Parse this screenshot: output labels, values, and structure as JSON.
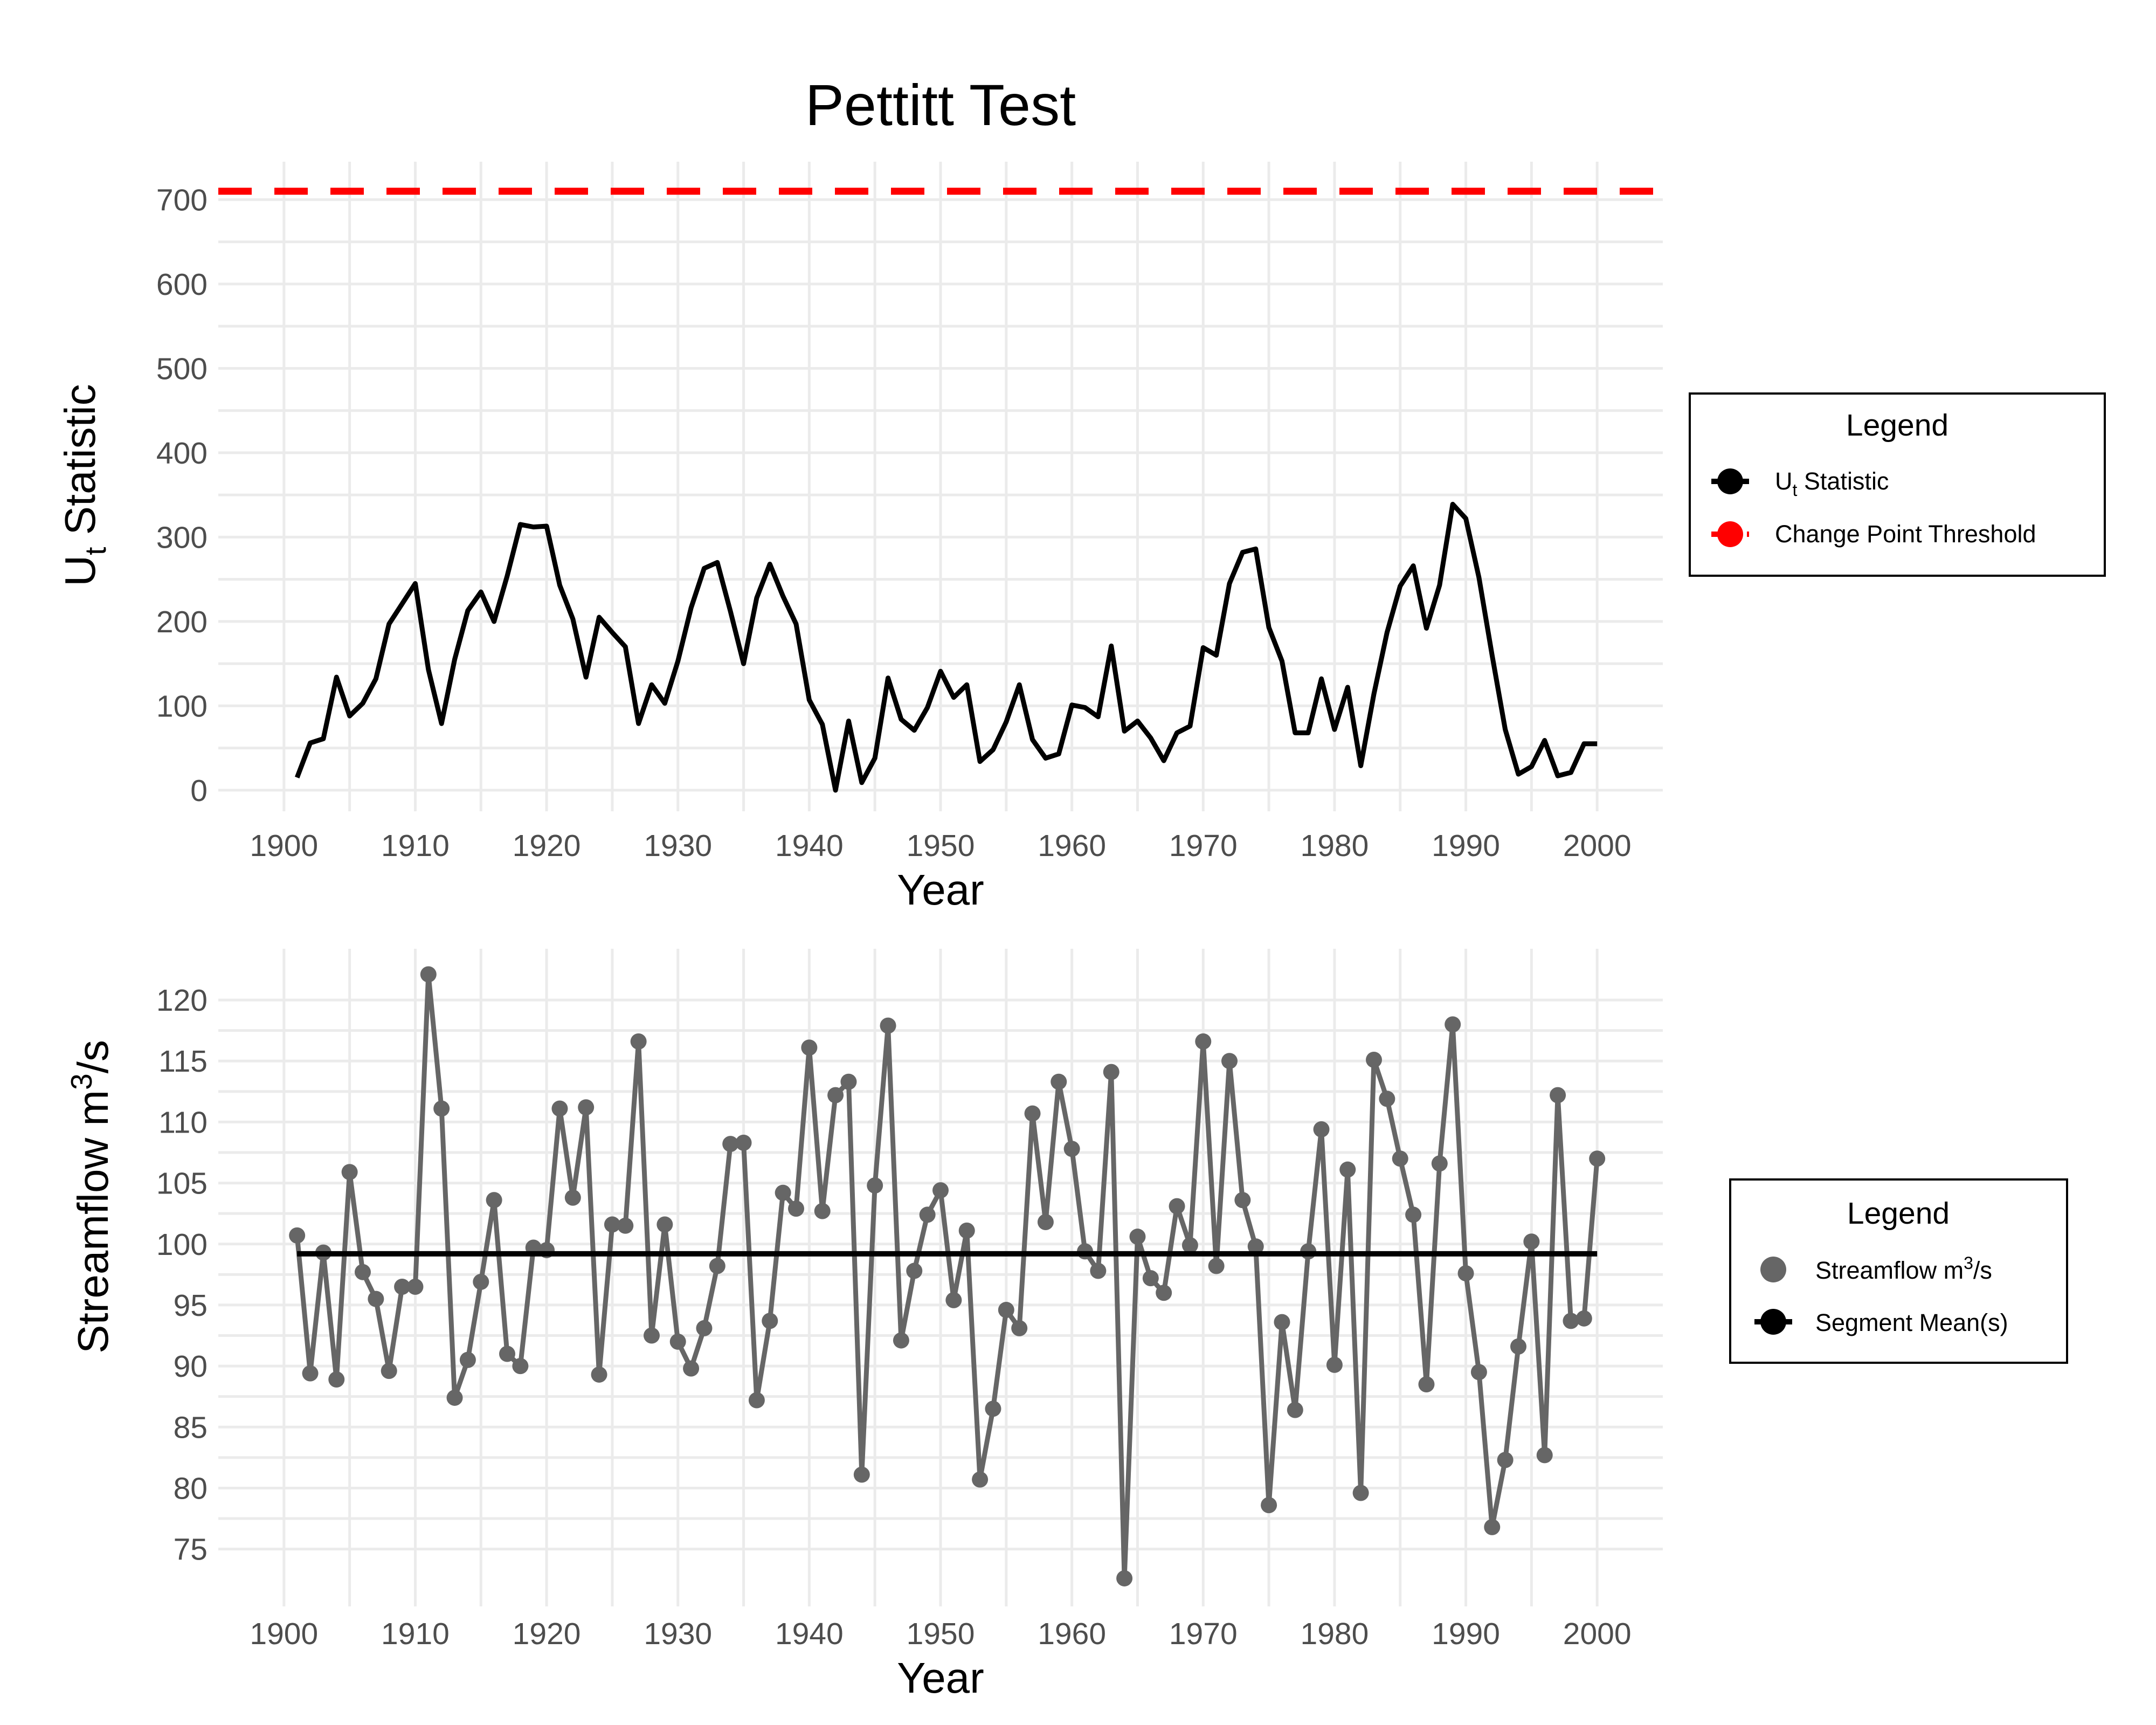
{
  "chart_data": [
    {
      "type": "line",
      "title": "Pettitt Test",
      "xlabel": "Year",
      "ylabel": "U",
      "ylabel_sub": "t",
      "ylabel_rest": " Statistic",
      "xlim": [
        1895,
        2005
      ],
      "ylim": [
        -25,
        745
      ],
      "x_ticks": [
        1900,
        1910,
        1920,
        1930,
        1940,
        1950,
        1960,
        1970,
        1980,
        1990,
        2000
      ],
      "y_ticks": [
        0,
        100,
        200,
        300,
        400,
        500,
        600,
        700
      ],
      "grid": true,
      "legend": {
        "title": "Legend",
        "position": "right",
        "entries": [
          {
            "label": "U",
            "sub": "t",
            "rest": " Statistic",
            "color": "#000000",
            "style": "line"
          },
          {
            "label": "Change Point Threshold",
            "sub": "",
            "rest": "",
            "color": "#ff0000",
            "style": "dashed"
          }
        ]
      },
      "threshold": {
        "name": "Change Point Threshold",
        "value": 710,
        "color": "#ff0000"
      },
      "series": [
        {
          "name": "Ut Statistic",
          "color": "#000000",
          "x": [
            1901,
            1902,
            1903,
            1904,
            1905,
            1906,
            1907,
            1908,
            1909,
            1910,
            1911,
            1912,
            1913,
            1914,
            1915,
            1916,
            1917,
            1918,
            1919,
            1920,
            1921,
            1922,
            1923,
            1924,
            1925,
            1926,
            1927,
            1928,
            1929,
            1930,
            1931,
            1932,
            1933,
            1934,
            1935,
            1936,
            1937,
            1938,
            1939,
            1940,
            1941,
            1942,
            1943,
            1944,
            1945,
            1946,
            1947,
            1948,
            1949,
            1950,
            1951,
            1952,
            1953,
            1954,
            1955,
            1956,
            1957,
            1958,
            1959,
            1960,
            1961,
            1962,
            1963,
            1964,
            1965,
            1966,
            1967,
            1968,
            1969,
            1970,
            1971,
            1972,
            1973,
            1974,
            1975,
            1976,
            1977,
            1978,
            1979,
            1980,
            1981,
            1982,
            1983,
            1984,
            1985,
            1986,
            1987,
            1988,
            1989,
            1990,
            1991,
            1992,
            1993,
            1994,
            1995,
            1996,
            1997,
            1998,
            1999,
            2000
          ],
          "y": [
            15,
            56,
            61,
            134,
            88,
            103,
            132,
            197,
            221,
            245,
            143,
            79,
            155,
            213,
            235,
            200,
            254,
            315,
            312,
            313,
            243,
            203,
            134,
            205,
            187,
            170,
            79,
            125,
            103,
            153,
            216,
            263,
            270,
            212,
            150,
            228,
            268,
            230,
            197,
            107,
            78,
            0,
            82,
            9,
            38,
            133,
            84,
            71,
            98,
            141,
            110,
            125,
            34,
            48,
            81,
            125,
            60,
            38,
            43,
            101,
            98,
            87,
            171,
            70,
            82,
            62,
            35,
            68,
            76,
            169,
            160,
            245,
            282,
            286,
            193,
            153,
            68,
            68,
            132,
            72,
            122,
            29,
            114,
            187,
            242,
            266,
            192,
            243,
            339,
            322,
            252,
            160,
            72,
            19,
            28,
            59,
            17,
            21,
            55,
            55
          ]
        }
      ]
    },
    {
      "type": "line",
      "title": "",
      "xlabel": "Year",
      "ylabel": "Streamflow m",
      "ylabel_sup": "3",
      "ylabel_rest": "/s",
      "xlim": [
        1895,
        2005
      ],
      "ylim": [
        70.3,
        124.2
      ],
      "x_ticks": [
        1900,
        1910,
        1920,
        1930,
        1940,
        1950,
        1960,
        1970,
        1980,
        1990,
        2000
      ],
      "y_ticks": [
        75,
        80,
        85,
        90,
        95,
        100,
        105,
        110,
        115,
        120
      ],
      "grid": true,
      "legend": {
        "title": "Legend",
        "position": "right",
        "entries": [
          {
            "label": "Streamflow m",
            "sup": "3",
            "rest": "/s",
            "color": "#666666",
            "style": "point"
          },
          {
            "label": "Segment Mean(s)",
            "sup": "",
            "rest": "",
            "color": "#000000",
            "style": "line"
          }
        ]
      },
      "segment_mean": {
        "name": "Segment Mean(s)",
        "x": [
          1901,
          2000
        ],
        "value": 99.2,
        "color": "#000000"
      },
      "series": [
        {
          "name": "Streamflow m3/s",
          "color": "#666666",
          "x": [
            1901,
            1902,
            1903,
            1904,
            1905,
            1906,
            1907,
            1908,
            1909,
            1910,
            1911,
            1912,
            1913,
            1914,
            1915,
            1916,
            1917,
            1918,
            1919,
            1920,
            1921,
            1922,
            1923,
            1924,
            1925,
            1926,
            1927,
            1928,
            1929,
            1930,
            1931,
            1932,
            1933,
            1934,
            1935,
            1936,
            1937,
            1938,
            1939,
            1940,
            1941,
            1942,
            1943,
            1944,
            1945,
            1946,
            1947,
            1948,
            1949,
            1950,
            1951,
            1952,
            1953,
            1954,
            1955,
            1956,
            1957,
            1958,
            1959,
            1960,
            1961,
            1962,
            1963,
            1964,
            1965,
            1966,
            1967,
            1968,
            1969,
            1970,
            1971,
            1972,
            1973,
            1974,
            1975,
            1976,
            1977,
            1978,
            1979,
            1980,
            1981,
            1982,
            1983,
            1984,
            1985,
            1986,
            1987,
            1988,
            1989,
            1990,
            1991,
            1992,
            1993,
            1994,
            1995,
            1996,
            1997,
            1998,
            1999,
            2000
          ],
          "y": [
            100.7,
            89.4,
            99.3,
            88.9,
            105.9,
            97.7,
            95.5,
            89.6,
            96.5,
            96.5,
            122.1,
            111.1,
            87.4,
            90.5,
            96.9,
            103.6,
            91.0,
            90.0,
            99.7,
            99.5,
            111.1,
            103.8,
            111.2,
            89.3,
            101.6,
            101.5,
            116.6,
            92.5,
            101.6,
            92.0,
            89.8,
            93.1,
            98.2,
            108.2,
            108.3,
            87.2,
            93.7,
            104.2,
            102.9,
            116.1,
            102.7,
            112.2,
            113.3,
            81.1,
            104.8,
            117.9,
            92.1,
            97.8,
            102.4,
            104.4,
            95.4,
            101.1,
            80.7,
            86.5,
            94.6,
            93.1,
            110.7,
            101.8,
            113.3,
            107.8,
            99.4,
            97.8,
            114.1,
            72.6,
            100.6,
            97.2,
            96.0,
            103.1,
            99.9,
            116.6,
            98.2,
            115.0,
            103.6,
            99.8,
            78.6,
            93.6,
            86.4,
            99.4,
            109.4,
            90.1,
            106.1,
            79.6,
            115.1,
            111.9,
            107.0,
            102.4,
            88.5,
            106.6,
            118.0,
            97.6,
            89.5,
            76.8,
            82.3,
            91.6,
            100.2,
            82.7,
            112.2,
            93.7,
            93.9,
            107.0
          ]
        }
      ]
    }
  ]
}
